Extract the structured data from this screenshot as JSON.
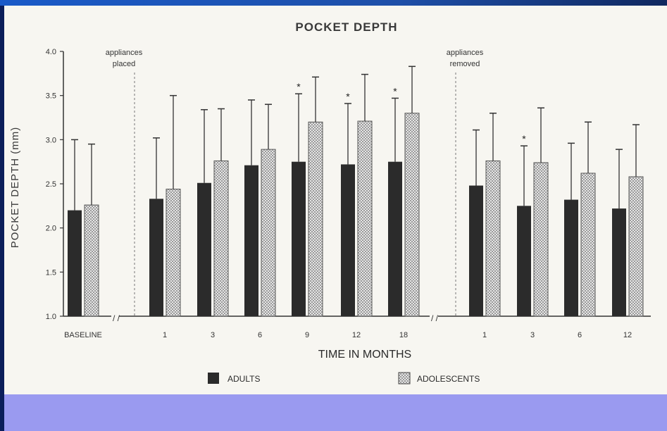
{
  "chart_data": {
    "type": "bar",
    "title": "POCKET DEPTH",
    "ylabel": "POCKET DEPTH (mm)",
    "xlabel": "TIME IN MONTHS",
    "ylim": [
      1.0,
      4.0
    ],
    "yticks": [
      "1.0",
      "1.5",
      "2.0",
      "2.5",
      "3.0",
      "3.5",
      "4.0"
    ],
    "categories": [
      "BASELINE",
      "1",
      "3",
      "6",
      "9",
      "12",
      "18",
      "1",
      "3",
      "6",
      "12"
    ],
    "series": [
      {
        "name": "ADULTS",
        "color": "#2b2b2b",
        "values": [
          2.2,
          2.33,
          2.51,
          2.71,
          2.75,
          2.72,
          2.75,
          2.48,
          2.25,
          2.32,
          2.22
        ],
        "error_upper": [
          3.0,
          3.02,
          3.34,
          3.45,
          3.52,
          3.41,
          3.47,
          3.11,
          2.93,
          2.96,
          2.89
        ]
      },
      {
        "name": "ADOLESCENTS",
        "color": "#cfcfcf",
        "values": [
          2.26,
          2.44,
          2.76,
          2.89,
          3.2,
          3.21,
          3.3,
          2.76,
          2.74,
          2.62,
          2.58
        ],
        "error_upper": [
          2.95,
          3.5,
          3.35,
          3.4,
          3.71,
          3.74,
          3.83,
          3.3,
          3.36,
          3.2,
          3.17
        ]
      }
    ],
    "significance_marks": [
      {
        "category_index": 4,
        "label": "*"
      },
      {
        "category_index": 5,
        "label": "*"
      },
      {
        "category_index": 6,
        "label": "*"
      },
      {
        "category_index": 8,
        "label": "*"
      }
    ],
    "annotations": [
      {
        "text_lines": [
          "appliances",
          "placed"
        ],
        "after_category_index": 0
      },
      {
        "text_lines": [
          "appliances",
          "removed"
        ],
        "after_category_index": 6
      }
    ],
    "axis_break_mark": "/ /",
    "legend_position": "bottom"
  }
}
